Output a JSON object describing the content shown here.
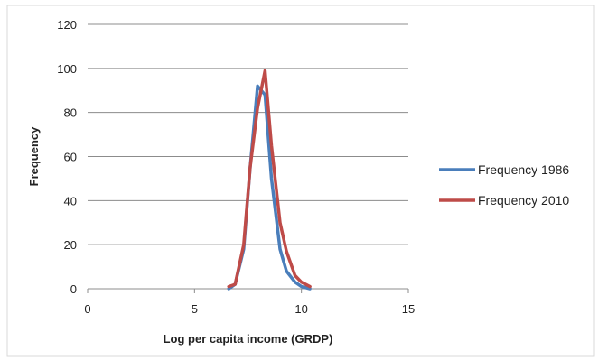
{
  "chart_data": {
    "type": "line",
    "title": "",
    "xlabel": "Log per capita income (GRDP)",
    "ylabel": "Frequency",
    "xlim": [
      0,
      15
    ],
    "ylim": [
      0,
      120
    ],
    "x_ticks": [
      0,
      5,
      10,
      15
    ],
    "y_ticks": [
      0,
      20,
      40,
      60,
      80,
      100,
      120
    ],
    "grid": "horizontal",
    "legend_position": "right",
    "series": [
      {
        "name": "Frequency 1986",
        "color": "#4a7ebb",
        "x": [
          6.6,
          6.9,
          7.3,
          7.6,
          7.95,
          8.3,
          8.6,
          9.0,
          9.3,
          9.7,
          10.0,
          10.4
        ],
        "y": [
          0,
          2,
          18,
          55,
          92,
          88,
          50,
          18,
          8,
          3,
          1,
          0
        ]
      },
      {
        "name": "Frequency 2010",
        "color": "#be4b48",
        "x": [
          6.6,
          6.9,
          7.3,
          7.6,
          7.95,
          8.3,
          8.6,
          9.0,
          9.3,
          9.7,
          10.0,
          10.4
        ],
        "y": [
          1,
          2,
          20,
          55,
          82,
          99,
          65,
          30,
          17,
          6,
          3,
          1
        ]
      }
    ]
  }
}
